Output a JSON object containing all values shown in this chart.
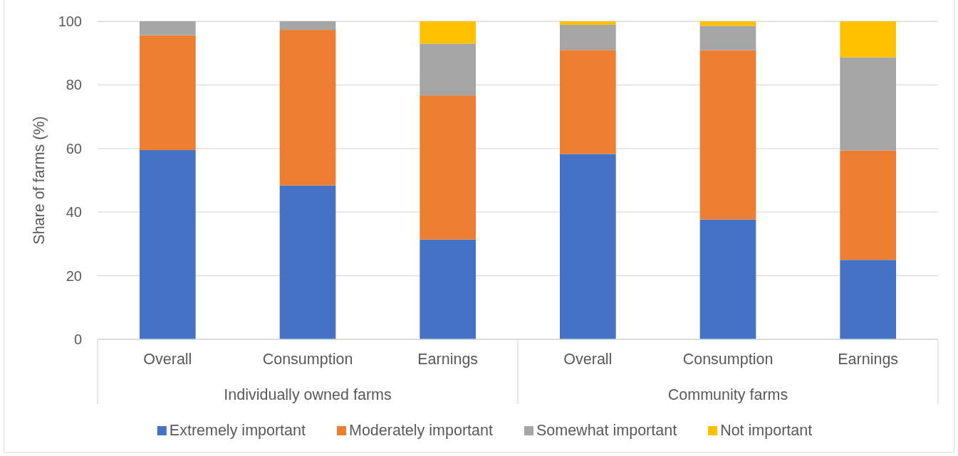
{
  "chart_data": {
    "type": "bar",
    "stacked": true,
    "ylabel": "Share of farms (%)",
    "categories": [
      "Overall",
      "Consumption",
      "Earnings",
      "Overall",
      "Consumption",
      "Earnings"
    ],
    "annotations": [
      "Individually owned farms",
      "Community farms"
    ],
    "series": [
      {
        "name": "Extremely important",
        "color": "#4472c4",
        "values": [
          59.5,
          48.4,
          31.4,
          58.3,
          37.7,
          25.0
        ]
      },
      {
        "name": "Moderately important",
        "color": "#ed7d31",
        "values": [
          36.1,
          48.9,
          45.3,
          32.7,
          53.2,
          34.4
        ]
      },
      {
        "name": "Somewhat important",
        "color": "#a5a5a5",
        "values": [
          4.4,
          2.7,
          16.3,
          7.9,
          7.7,
          29.3
        ]
      },
      {
        "name": "Not important",
        "color": "#ffc000",
        "values": [
          0,
          0,
          7.0,
          1.1,
          1.4,
          11.3
        ]
      }
    ],
    "ylim": [
      0,
      100
    ],
    "yticks": [
      0,
      20,
      40,
      60,
      80,
      100
    ],
    "grid": "y",
    "legend": "bottom"
  }
}
